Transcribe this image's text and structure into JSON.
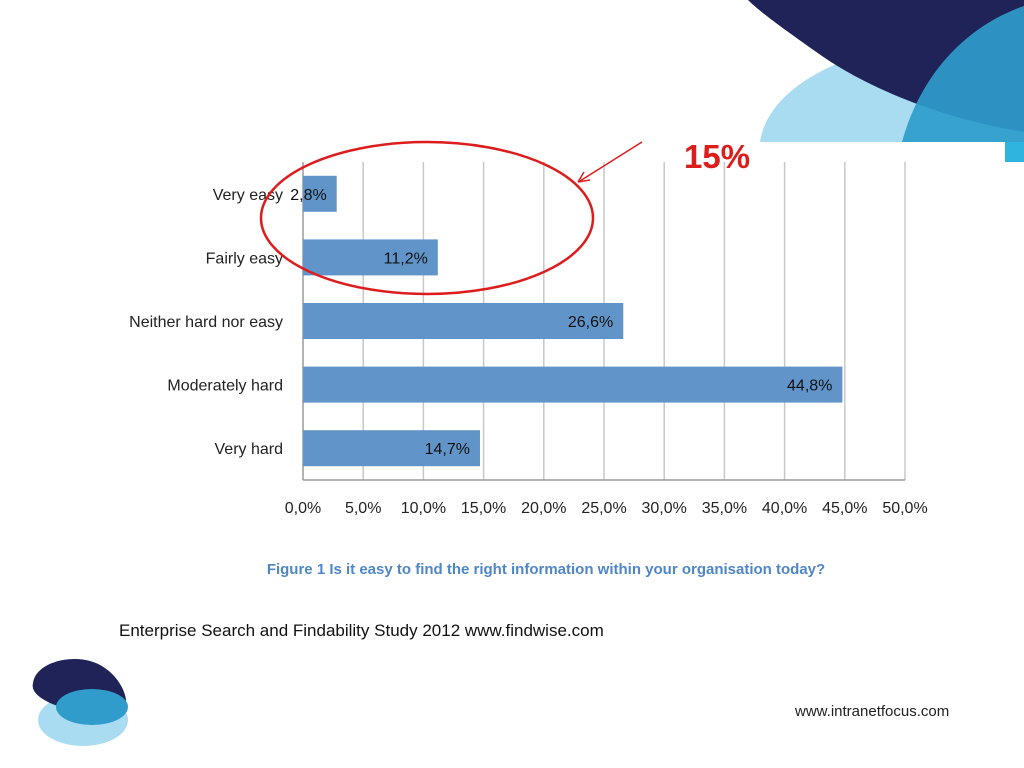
{
  "colors": {
    "bar": "#6195c9",
    "grid": "#c8c8c8",
    "callout": "#dd1c1c",
    "caption": "#4f86c6",
    "deco_navy": "#1f2357",
    "deco_blue": "#2f9ccb",
    "deco_light": "#a9dcf1"
  },
  "chart_data": {
    "type": "bar",
    "orientation": "horizontal",
    "categories": [
      "Very easy",
      "Fairly easy",
      "Neither hard nor easy",
      "Moderately hard",
      "Very hard"
    ],
    "values": [
      2.8,
      11.2,
      26.6,
      44.8,
      14.7
    ],
    "value_labels": [
      "2,8%",
      "11,2%",
      "26,6%",
      "44,8%",
      "14,7%"
    ],
    "xlim": [
      0,
      50
    ],
    "x_ticks": [
      0,
      5,
      10,
      15,
      20,
      25,
      30,
      35,
      40,
      45,
      50
    ],
    "x_tick_labels": [
      "0,0%",
      "5,0%",
      "10,0%",
      "15,0%",
      "20,0%",
      "25,0%",
      "30,0%",
      "35,0%",
      "40,0%",
      "45,0%",
      "50,0%"
    ],
    "grid": true,
    "annotation": {
      "text": "15%",
      "highlighted_categories": [
        "Very easy",
        "Fairly easy"
      ]
    }
  },
  "caption": "Figure 1 Is it easy to find the right information within your organisation today?",
  "source": "Enterprise Search and Findability Study 2012  www.findwise.com",
  "site_url": "www.intranetfocus.com"
}
